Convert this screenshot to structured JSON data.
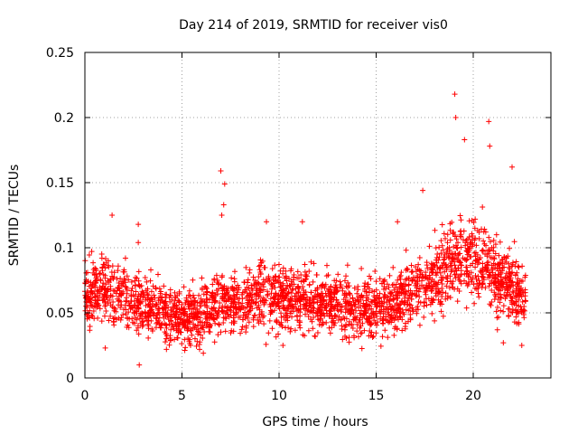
{
  "chart_data": {
    "type": "scatter",
    "title": "Day 214 of 2019, SRMTID for receiver vis0",
    "xlabel": "GPS time / hours",
    "ylabel": "SRMTID / TECUs",
    "xlim": [
      0,
      24
    ],
    "ylim": [
      0,
      0.25
    ],
    "x_ticks": [
      0,
      5,
      10,
      15,
      20
    ],
    "x_tick_labels": [
      "0",
      "5",
      "10",
      "15",
      "20"
    ],
    "y_ticks": [
      0,
      0.05,
      0.1,
      0.15,
      0.2,
      0.25
    ],
    "y_tick_labels": [
      "0",
      "0.05",
      "0.1",
      "0.15",
      "0.2",
      "0.25"
    ],
    "grid": true,
    "marker": "plus",
    "color": "#ff0000",
    "data_end_hour": 22.7,
    "series": [
      {
        "name": "SRMTID",
        "trend": {
          "x": [
            0,
            1,
            2,
            3,
            4,
            5,
            6,
            7,
            8,
            9,
            10,
            11,
            12,
            13,
            14,
            15,
            16,
            17,
            18,
            19,
            20,
            21,
            22,
            22.7
          ],
          "y": [
            0.065,
            0.068,
            0.062,
            0.058,
            0.05,
            0.048,
            0.047,
            0.06,
            0.055,
            0.065,
            0.062,
            0.06,
            0.058,
            0.057,
            0.055,
            0.055,
            0.058,
            0.07,
            0.075,
            0.09,
            0.095,
            0.08,
            0.07,
            0.06
          ]
        },
        "notable_points": [
          {
            "x": 19.05,
            "y": 0.218
          },
          {
            "x": 19.1,
            "y": 0.2
          },
          {
            "x": 20.8,
            "y": 0.197
          },
          {
            "x": 19.55,
            "y": 0.183
          },
          {
            "x": 20.85,
            "y": 0.178
          },
          {
            "x": 21.2,
            "y": 0.11
          },
          {
            "x": 22.0,
            "y": 0.162
          },
          {
            "x": 7.0,
            "y": 0.159
          },
          {
            "x": 7.2,
            "y": 0.149
          },
          {
            "x": 17.4,
            "y": 0.144
          },
          {
            "x": 7.15,
            "y": 0.133
          },
          {
            "x": 7.05,
            "y": 0.125
          },
          {
            "x": 1.4,
            "y": 0.125
          },
          {
            "x": 2.75,
            "y": 0.118
          },
          {
            "x": 9.35,
            "y": 0.12
          },
          {
            "x": 11.2,
            "y": 0.12
          },
          {
            "x": 16.1,
            "y": 0.12
          },
          {
            "x": 2.75,
            "y": 0.104
          },
          {
            "x": 2.8,
            "y": 0.01
          },
          {
            "x": 1.05,
            "y": 0.023
          },
          {
            "x": 4.2,
            "y": 0.022
          },
          {
            "x": 6.1,
            "y": 0.019
          },
          {
            "x": 10.2,
            "y": 0.025
          },
          {
            "x": 21.55,
            "y": 0.027
          },
          {
            "x": 22.5,
            "y": 0.025
          },
          {
            "x": 20.1,
            "y": 0.122
          }
        ]
      }
    ]
  }
}
